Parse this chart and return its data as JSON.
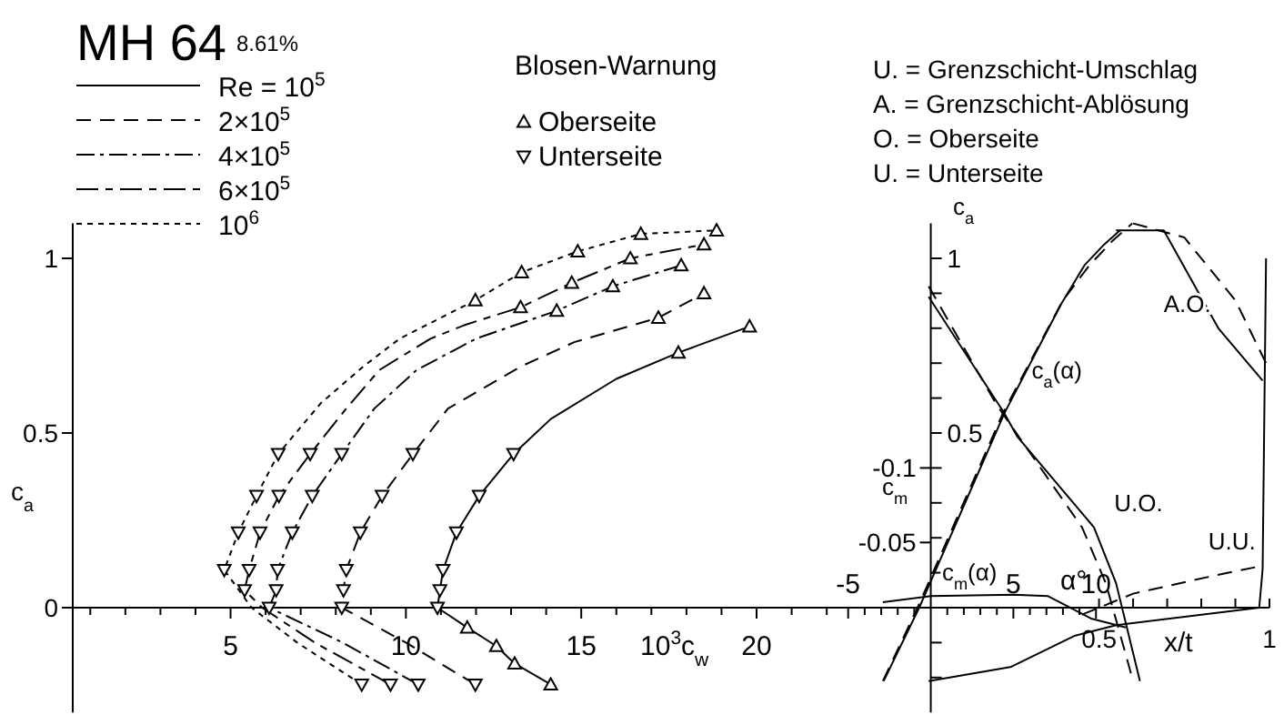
{
  "chart_data": [
    {
      "type": "line",
      "title": "MH 64",
      "subtitle": "8.61%",
      "xlabel": "10$^{3}$c$_{w}$",
      "ylabel": "c$_{a}$",
      "legend_title": "Blosen-Warnung",
      "legend": "top left",
      "xlim": [
        0.5,
        22.8
      ],
      "ylim": [
        -0.3,
        1.1
      ],
      "xticks": [
        {
          "value": 1,
          "label": null
        },
        {
          "value": 2,
          "label": null
        },
        {
          "value": 3,
          "label": null
        },
        {
          "value": 4,
          "label": null
        },
        5,
        {
          "value": 6,
          "label": null
        },
        {
          "value": 7,
          "label": null
        },
        {
          "value": 8,
          "label": null
        },
        {
          "value": 9,
          "label": null
        },
        10,
        {
          "value": 11,
          "label": null
        },
        {
          "value": 12,
          "label": null
        },
        {
          "value": 13,
          "label": null
        },
        {
          "value": 14,
          "label": null
        },
        15,
        {
          "value": 16,
          "label": null
        },
        {
          "value": 17,
          "label": null
        },
        {
          "value": 18,
          "label": null
        },
        {
          "value": 19,
          "label": null
        },
        20,
        {
          "value": 21,
          "label": null
        },
        {
          "value": 22,
          "label": null
        }
      ],
      "yticks": [
        0,
        0.5,
        1
      ],
      "series": [
        {
          "name": "Re = 10$^{5}$",
          "color": "#000000",
          "line_style": "solid",
          "x": [
            14.13,
            13.1,
            12.58,
            11.75,
            10.9,
            10.97,
            11.06,
            11.44,
            12.09,
            13.07,
            14.13,
            16.0,
            17.77,
            19.8
          ],
          "values": [
            -0.22,
            -0.16,
            -0.11,
            -0.057,
            0,
            0.05,
            0.108,
            0.215,
            0.32,
            0.44,
            0.54,
            0.655,
            0.73,
            0.805
          ]
        },
        {
          "name": "2×10$^{5}$",
          "color": "#000000",
          "line_style": "dashed",
          "x": [
            11.98,
            10.0,
            8.17,
            8.22,
            8.3,
            8.7,
            9.32,
            10.2,
            11.2,
            13.27,
            14.8,
            17.2,
            18.5
          ],
          "values": [
            -0.22,
            -0.1,
            0,
            0.05,
            0.108,
            0.215,
            0.32,
            0.44,
            0.57,
            0.69,
            0.76,
            0.83,
            0.9
          ]
        },
        {
          "name": "4×10$^{5}$",
          "color": "#000000",
          "line_style": "dashdot",
          "x": [
            10.35,
            8.2,
            6.1,
            6.3,
            6.34,
            6.76,
            7.33,
            8.17,
            9.1,
            10.3,
            12.0,
            14.3,
            15.9,
            17.85
          ],
          "values": [
            -0.22,
            -0.1,
            0,
            0.05,
            0.108,
            0.215,
            0.32,
            0.44,
            0.57,
            0.68,
            0.77,
            0.85,
            0.92,
            0.98
          ]
        },
        {
          "name": "6×10$^{5}$",
          "color": "#000000",
          "line_style": "longdash",
          "x": [
            9.56,
            7.4,
            5.9,
            5.4,
            5.53,
            5.84,
            6.38,
            7.27,
            8.3,
            9.24,
            10.7,
            11.7,
            13.27,
            14.73,
            16.4,
            18.5
          ],
          "values": [
            -0.22,
            -0.1,
            0,
            0.05,
            0.108,
            0.215,
            0.32,
            0.44,
            0.57,
            0.68,
            0.77,
            0.81,
            0.86,
            0.93,
            1.0,
            1.04
          ]
        },
        {
          "name": "10$^{6}$",
          "color": "#000000",
          "line_style": "dotted",
          "x": [
            8.74,
            6.9,
            5.6,
            4.82,
            5.22,
            5.74,
            6.36,
            7.57,
            8.78,
            9.82,
            11.98,
            13.3,
            14.9,
            16.7,
            18.86
          ],
          "values": [
            -0.22,
            -0.1,
            0,
            0.108,
            0.215,
            0.32,
            0.44,
            0.585,
            0.69,
            0.77,
            0.88,
            0.96,
            1.02,
            1.07,
            1.08
          ]
        },
        {
          "name": "Oberseite",
          "type": "scatter",
          "marker": "triangle",
          "color": "#000000",
          "x": [
            11.98,
            13.3,
            14.9,
            16.7,
            18.86,
            13.27,
            14.73,
            16.4,
            18.5,
            14.3,
            15.9,
            17.85,
            17.2,
            18.5,
            17.77,
            19.8,
            11.75,
            12.58,
            13.1,
            14.13
          ],
          "values": [
            0.88,
            0.96,
            1.02,
            1.07,
            1.08,
            0.86,
            0.93,
            1.0,
            1.04,
            0.85,
            0.92,
            0.98,
            0.83,
            0.9,
            0.73,
            0.805,
            -0.057,
            -0.11,
            -0.16,
            -0.22
          ]
        },
        {
          "name": "Unterseite",
          "type": "scatter",
          "marker": "triangle-down",
          "color": "#000000",
          "x": [
            6.36,
            7.27,
            8.17,
            10.2,
            13.07,
            5.74,
            6.38,
            7.33,
            9.32,
            12.09,
            5.22,
            5.84,
            6.76,
            8.7,
            11.44,
            4.82,
            5.53,
            6.34,
            8.3,
            11.06,
            5.4,
            6.3,
            8.22,
            10.97,
            6.1,
            8.17,
            10.9,
            8.74,
            9.56,
            10.35,
            11.98
          ],
          "values": [
            0.44,
            0.44,
            0.44,
            0.44,
            0.44,
            0.32,
            0.32,
            0.32,
            0.32,
            0.32,
            0.215,
            0.215,
            0.215,
            0.215,
            0.215,
            0.108,
            0.108,
            0.108,
            0.108,
            0.108,
            0.05,
            0.05,
            0.05,
            0.05,
            0,
            0,
            0,
            -0.22,
            -0.22,
            -0.22,
            -0.22
          ]
        }
      ]
    },
    {
      "type": "line",
      "xlabel": "α°",
      "ylabel": "c$_{a}$",
      "y2label": "c$_{m}$",
      "x2label": "x/t",
      "xlim": [
        -5.7,
        20.5
      ],
      "ylim": [
        -0.3,
        1.1
      ],
      "x2lim": [
        -0.27,
        1.0
      ],
      "y2lim": [
        0.064,
        -0.264
      ],
      "xticks": [
        -5,
        {
          "value": -4,
          "label": null
        },
        {
          "value": -3,
          "label": null
        },
        {
          "value": -2,
          "label": null
        },
        {
          "value": -1,
          "label": null
        },
        {
          "value": 1,
          "label": null
        },
        {
          "value": 2,
          "label": null
        },
        {
          "value": 3,
          "label": null
        },
        {
          "value": 4,
          "label": null
        },
        5,
        {
          "value": 6,
          "label": null
        },
        {
          "value": 7,
          "label": null
        },
        {
          "value": 8,
          "label": null
        },
        {
          "value": 9,
          "label": null
        },
        10
      ],
      "yticks": [
        {
          "value": -0.2,
          "label": null
        },
        {
          "value": -0.1,
          "label": null
        },
        {
          "value": 0.1,
          "label": null
        },
        {
          "value": 0.2,
          "label": null
        },
        {
          "value": 0.3,
          "label": null
        },
        {
          "value": 0.4,
          "label": null
        },
        0.5,
        {
          "value": 0.6,
          "label": null
        },
        {
          "value": 0.7,
          "label": null
        },
        {
          "value": 0.8,
          "label": null
        },
        {
          "value": 0.9,
          "label": null
        },
        1
      ],
      "x2ticks": [
        {
          "value": 0.6,
          "label": null
        },
        {
          "value": 0.7,
          "label": null
        },
        {
          "value": 0.8,
          "label": null
        },
        {
          "value": 0.9,
          "label": null
        },
        0.5,
        1
      ],
      "y2ticks": [
        -0.1,
        -0.05
      ],
      "annotations": [
        {
          "text": "c$_{a}$(α)",
          "x": 5.0,
          "y": 0.61
        },
        {
          "text": "c$_{m}$(α)",
          "x": -0.42,
          "y": 0.03
        },
        {
          "text": "U.O.",
          "x": 10.0,
          "y": 0.23
        },
        {
          "text": "U.U.",
          "x": 20.1,
          "y": 0.12
        },
        {
          "text": "A.O.",
          "x": 17.4,
          "y": 0.8
        },
        "U. = Grenzschicht-Umschlag",
        "A. = Grenzschicht-Ablösung",
        "O. = Oberseite",
        "U. = Unterseite"
      ],
      "series": [
        {
          "color": "#000000",
          "line_style": "solid",
          "x": [
            -2.85,
            -0.7,
            4.46,
            7.9,
            9.3,
            10.5,
            11.45
          ],
          "values": [
            -0.21,
            0,
            0.557,
            0.87,
            0.98,
            1.04,
            1.08
          ]
        },
        {
          "color": "#000000",
          "line_style": "dashed",
          "x": [
            -2.9,
            -0.8,
            4.4,
            8.0,
            9.6,
            11.0,
            12.2
          ],
          "values": [
            -0.21,
            0,
            0.56,
            0.88,
            0.98,
            1.05,
            1.1
          ]
        },
        {
          "color": "#000000",
          "line_style": "solid",
          "axis": "y2",
          "x": [
            -2.9,
            0,
            5,
            7.1,
            9.7,
            11.8
          ],
          "values": [
            -0.01,
            -0.014,
            -0.015,
            -0.014,
            0.001,
            0.007
          ]
        },
        {
          "color": "#000000",
          "line_style": "solid",
          "axis": "x2",
          "x": [
            0,
            0.22,
            0.26,
            0.485,
            0.55,
            0.62
          ],
          "values": [
            0.89,
            0.56,
            0.49,
            0.23,
            0.07,
            -0.21
          ]
        },
        {
          "color": "#000000",
          "line_style": "dashed",
          "axis": "x2",
          "x": [
            0,
            0.2,
            0.45,
            0.52,
            0.6
          ],
          "values": [
            0.92,
            0.58,
            0.23,
            0.07,
            -0.21
          ]
        },
        {
          "color": "#000000",
          "line_style": "solid",
          "axis": "x2",
          "x": [
            0,
            0.24,
            0.43,
            0.55,
            0.97,
            0.98,
            0.99
          ],
          "values": [
            -0.21,
            -0.17,
            -0.08,
            -0.05,
            0,
            0.11,
            1.0
          ]
        },
        {
          "color": "#000000",
          "line_style": "dashed",
          "axis": "x2",
          "x": [
            0.45,
            0.6,
            0.83,
            0.98
          ],
          "values": [
            -0.02,
            0.04,
            0.09,
            0.12
          ]
        },
        {
          "color": "#000000",
          "line_style": "solid",
          "axis": "x2",
          "x": [
            0.55,
            0.69,
            0.85,
            0.98
          ],
          "values": [
            1.08,
            1.08,
            0.8,
            0.65
          ]
        },
        {
          "color": "#000000",
          "line_style": "dashed",
          "axis": "x2",
          "x": [
            0.6,
            0.75,
            0.9,
            0.99
          ],
          "values": [
            1.1,
            1.06,
            0.88,
            0.7
          ]
        }
      ]
    }
  ]
}
